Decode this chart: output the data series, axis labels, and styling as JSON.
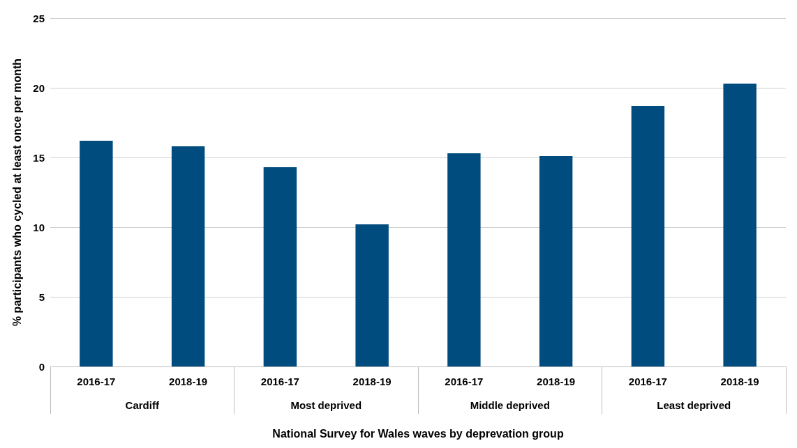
{
  "chart_data": {
    "type": "bar",
    "xlabel": "National Survey for Wales waves by deprevation group",
    "ylabel": "% participants who cycled at least once per month",
    "categories": [
      "2016-17",
      "2018-19",
      "2016-17",
      "2018-19",
      "2016-17",
      "2018-19",
      "2016-17",
      "2018-19"
    ],
    "values": [
      16.2,
      15.8,
      14.3,
      10.2,
      15.3,
      15.1,
      18.7,
      20.3
    ],
    "color": "#004c7f",
    "annotations": [
      "Cardiff",
      "Most deprived",
      "Middle deprived",
      "Least deprived"
    ],
    "ylim": [
      0,
      25
    ],
    "yticks": [
      0,
      5,
      10,
      15,
      20,
      25
    ],
    "grid": "y"
  }
}
